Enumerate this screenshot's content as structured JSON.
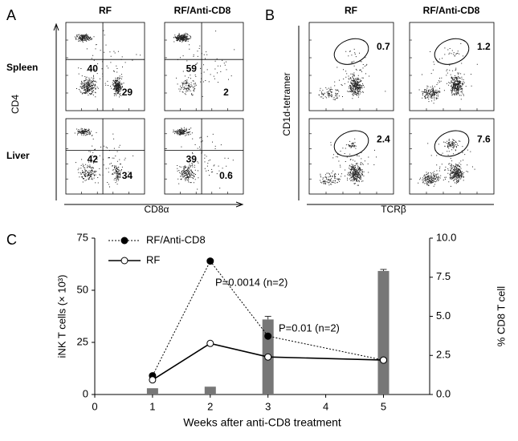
{
  "panel_a": {
    "label": "A",
    "columns": [
      "RF",
      "RF/Anti-CD8"
    ],
    "rows": [
      "Spleen",
      "Liver"
    ],
    "y_label": "CD4",
    "x_label": "CD8α",
    "plots": [
      [
        {
          "upper_left": "40",
          "lower_right": "29"
        },
        {
          "upper_left": "59",
          "lower_right": "2"
        }
      ],
      [
        {
          "upper_left": "42",
          "lower_right": "34"
        },
        {
          "upper_left": "39",
          "lower_right": "0.6"
        }
      ]
    ]
  },
  "panel_b": {
    "label": "B",
    "columns": [
      "RF",
      "RF/Anti-CD8"
    ],
    "y_label": "CD1d-tetramer",
    "x_label": "TCRβ",
    "plots": [
      [
        {
          "gate": "0.7"
        },
        {
          "gate": "1.2"
        }
      ],
      [
        {
          "gate": "2.4"
        },
        {
          "gate": "7.6"
        }
      ]
    ]
  },
  "chart_data": {
    "type": "line",
    "panel_label": "C",
    "x_label": "Weeks after anti-CD8 treatment",
    "y_label": "iNK T cells (× 10³)",
    "y2_label": "% CD8 T cell",
    "x": [
      1,
      2,
      3,
      5
    ],
    "xlim": [
      0,
      5.8
    ],
    "xticks": [
      0,
      1,
      2,
      3,
      4,
      5
    ],
    "ylim": [
      0,
      75
    ],
    "yticks": [
      0,
      25,
      50,
      75
    ],
    "y2lim": [
      0,
      10
    ],
    "y2ticks": [
      {
        "value": 0,
        "label": "0.0"
      },
      {
        "value": 2.5,
        "label": "2.5"
      },
      {
        "value": 5,
        "label": "5.0"
      },
      {
        "value": 7.5,
        "label": "7.5"
      },
      {
        "value": 10,
        "label": "10.0"
      }
    ],
    "series": [
      {
        "name": "RF/Anti-CD8",
        "color": "#000000",
        "style": "dashed",
        "marker": "filled",
        "values": [
          9,
          64,
          28,
          16.5
        ]
      },
      {
        "name": "RF",
        "color": "#000000",
        "style": "solid",
        "marker": "open",
        "values": [
          7,
          24.5,
          18,
          16.5
        ]
      },
      {
        "name": "% CD8 T cell",
        "type": "bar",
        "axis": "y2",
        "color": "#777777",
        "values": [
          0.4,
          0.5,
          4.8,
          7.9
        ],
        "errors": [
          0,
          0,
          0.2,
          0.1
        ]
      }
    ],
    "annotations": [
      "P=0.0014 (n=2)",
      "P=0.01 (n=2)"
    ]
  }
}
